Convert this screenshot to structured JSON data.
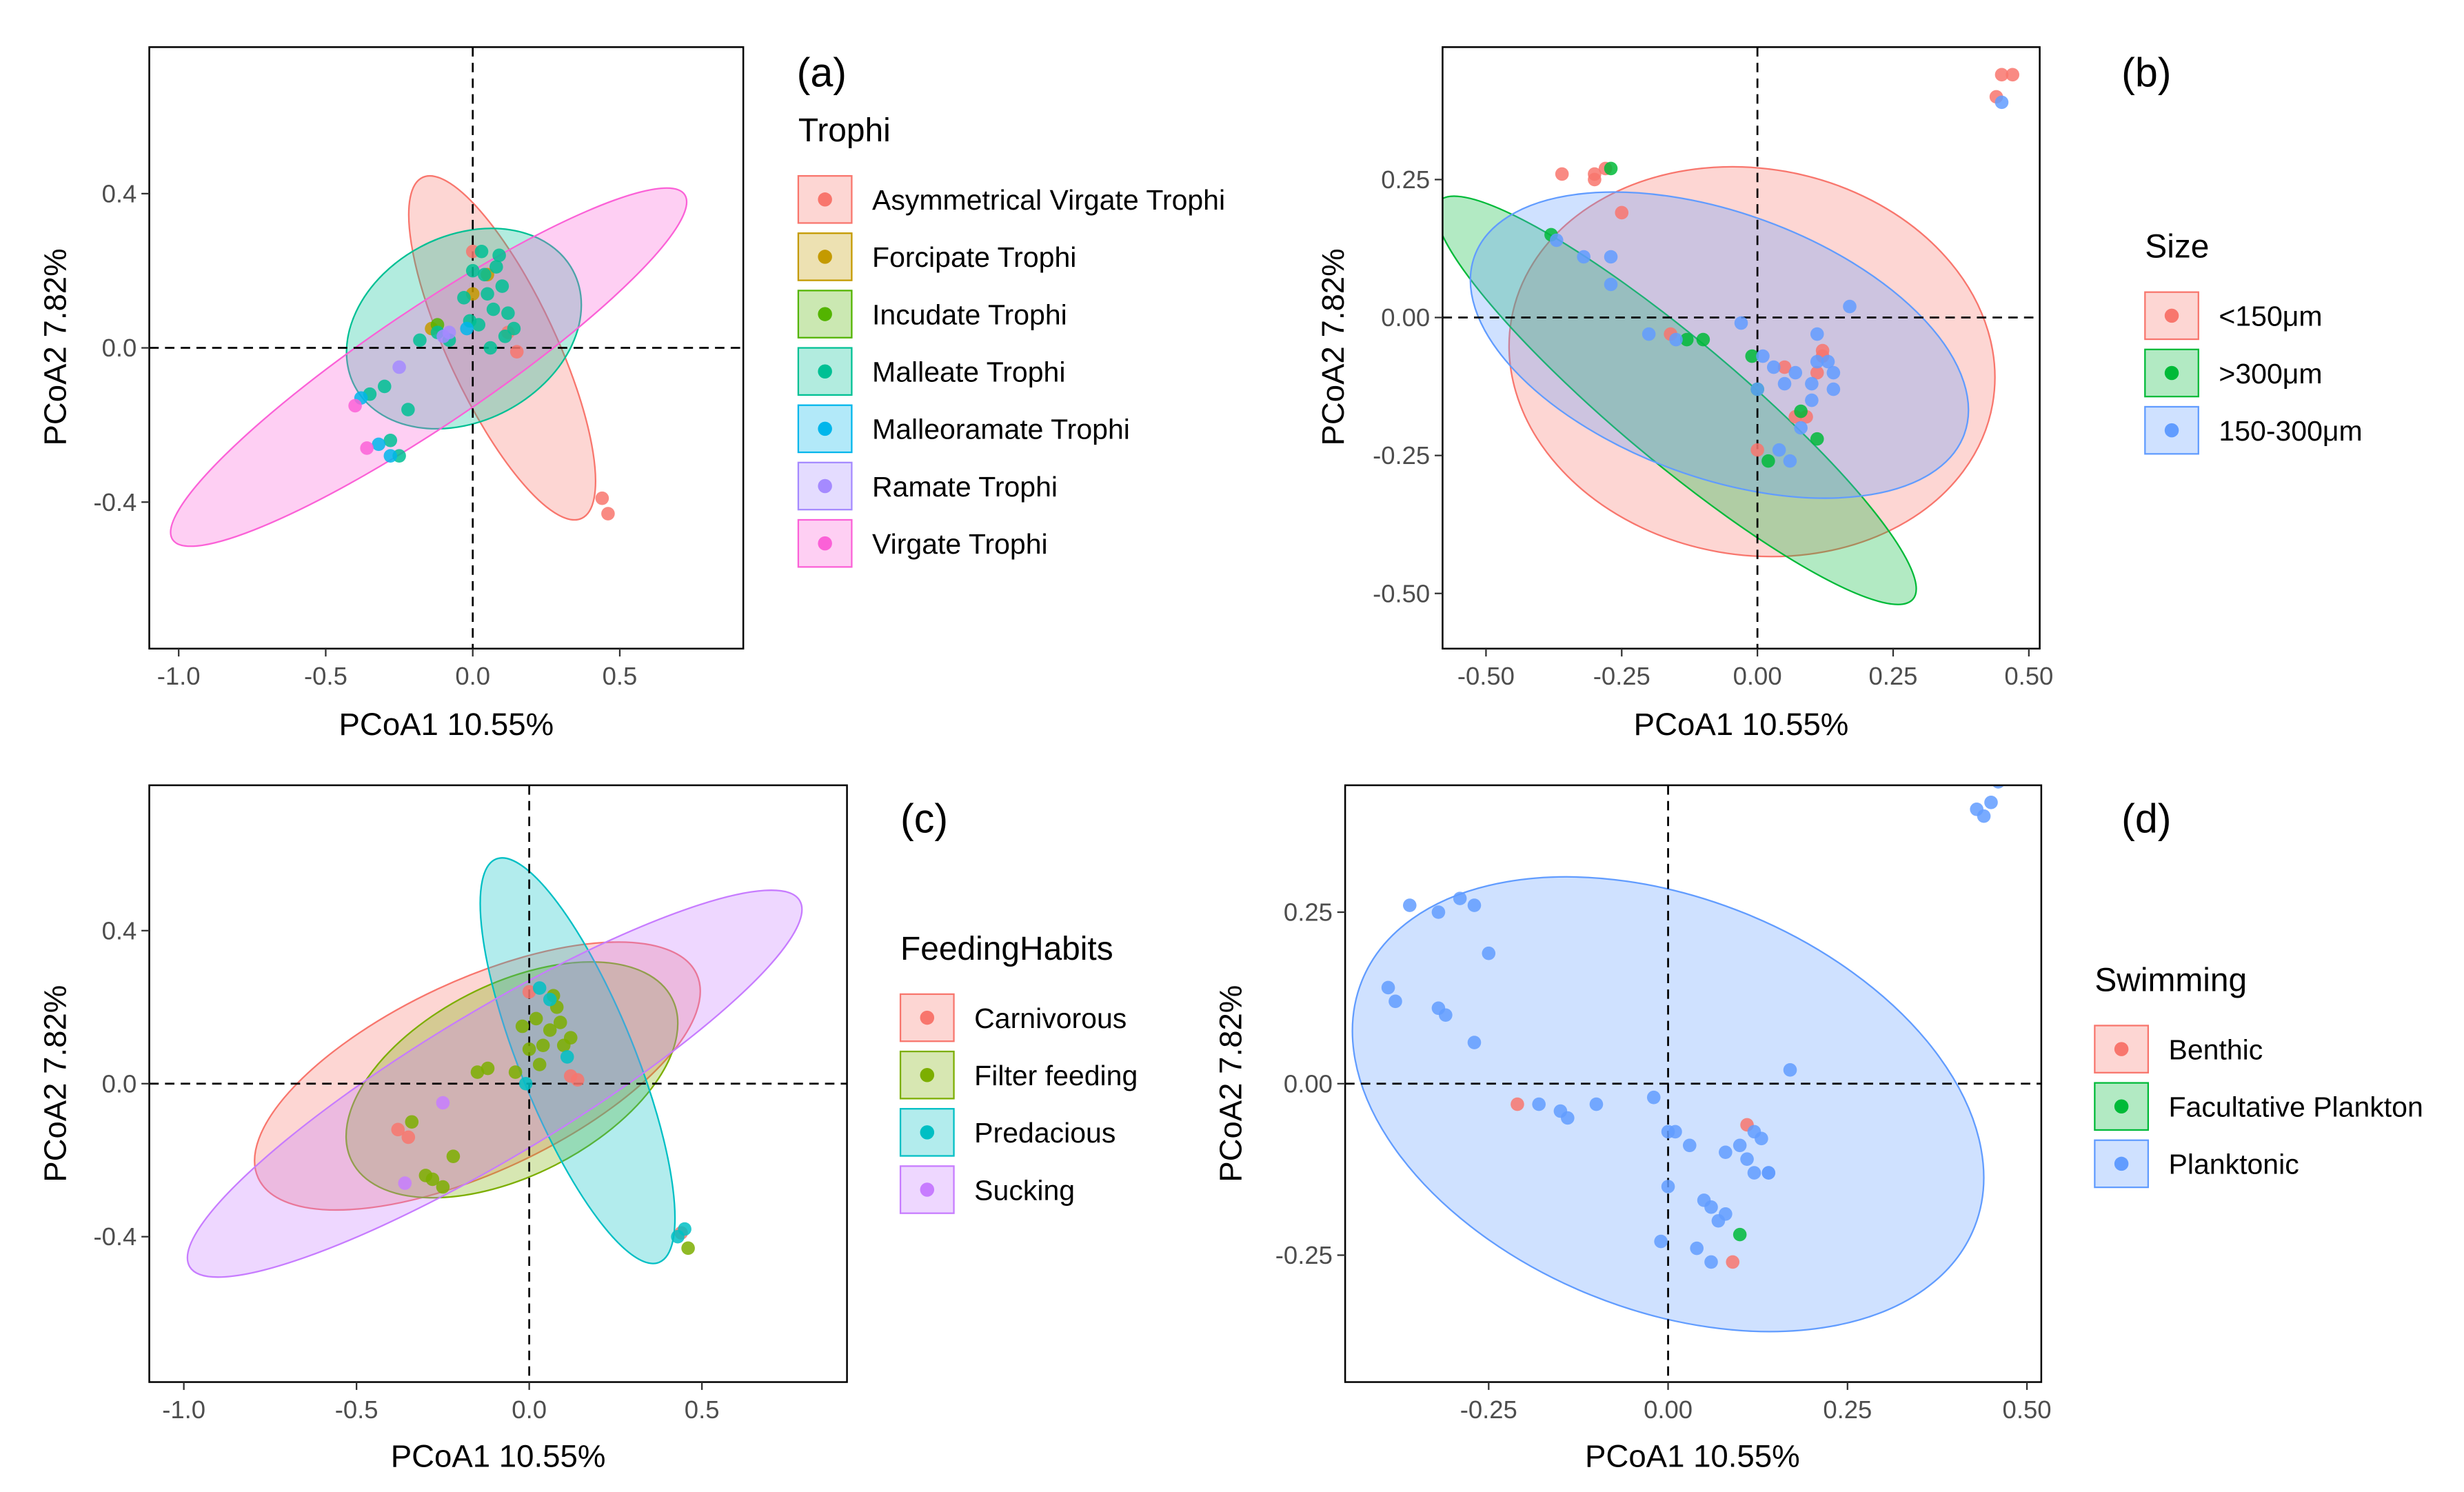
{
  "chart_data": [
    {
      "panel": "a",
      "tag": "(a)",
      "type": "scatter",
      "xlabel": "PCoA1 10.55%",
      "ylabel": "PCoA2 7.82%",
      "xlim": [
        -1.1,
        0.92
      ],
      "ylim": [
        -0.78,
        0.78
      ],
      "xticks": [
        -1.0,
        -0.5,
        0.0,
        0.5
      ],
      "xtick_labels": [
        "-1.0",
        "-0.5",
        "0.0",
        "0.5"
      ],
      "yticks": [
        -0.4,
        0.0,
        0.4
      ],
      "ytick_labels": [
        "-0.4",
        "0.0",
        "0.4"
      ],
      "legend": {
        "title": "Trophi",
        "position": "right",
        "entries": [
          "Asymmetrical Virgate Trophi",
          "Forcipate Trophi",
          "Incudate Trophi",
          "Malleate Trophi",
          "Malleoramate Trophi",
          "Ramate Trophi",
          "Virgate Trophi"
        ],
        "colors": [
          "#F8766D",
          "#C49A00",
          "#53B400",
          "#00C094",
          "#00B6EB",
          "#A58AFF",
          "#FB61D7"
        ]
      },
      "ellipses": [
        {
          "group": "Asymmetrical Virgate Trophi",
          "cx": 0.1,
          "cy": 0.0,
          "rx": 0.64,
          "ry": 0.14,
          "angle_deg": -65
        },
        {
          "group": "Malleate Trophi",
          "cx": -0.03,
          "cy": 0.05,
          "rx": 0.42,
          "ry": 0.24,
          "angle_deg": 28
        },
        {
          "group": "Virgate Trophi",
          "cx": -0.15,
          "cy": -0.05,
          "rx": 1.05,
          "ry": 0.15,
          "angle_deg": 34
        }
      ],
      "series": [
        {
          "name": "Asymmetrical Virgate Trophi",
          "x": [
            0.44,
            0.46,
            0.0,
            0.12,
            0.15
          ],
          "y": [
            -0.39,
            -0.43,
            0.25,
            0.04,
            -0.01
          ]
        },
        {
          "name": "Forcipate Trophi",
          "x": [
            0.05,
            0.0,
            -0.14
          ],
          "y": [
            0.19,
            0.14,
            0.05
          ]
        },
        {
          "name": "Incudate Trophi",
          "x": [
            -0.12
          ],
          "y": [
            0.06
          ]
        },
        {
          "name": "Malleate Trophi",
          "x": [
            -0.35,
            -0.3,
            -0.28,
            -0.25,
            -0.22,
            -0.18,
            -0.12,
            -0.08,
            0.0,
            0.03,
            0.05,
            0.07,
            0.08,
            0.1,
            0.12,
            0.14,
            0.02,
            0.06,
            -0.03,
            0.09,
            0.04,
            -0.01,
            0.11
          ],
          "y": [
            -0.12,
            -0.1,
            -0.24,
            -0.28,
            -0.16,
            0.02,
            0.04,
            0.02,
            0.2,
            0.25,
            0.14,
            0.1,
            0.21,
            0.16,
            0.09,
            0.05,
            0.06,
            0.0,
            0.13,
            0.24,
            0.19,
            0.07,
            0.03
          ]
        },
        {
          "name": "Malleoramate Trophi",
          "x": [
            -0.38,
            -0.32,
            -0.28,
            -0.02
          ],
          "y": [
            -0.13,
            -0.25,
            -0.28,
            0.05
          ]
        },
        {
          "name": "Ramate Trophi",
          "x": [
            -0.25,
            -0.1,
            -0.08
          ],
          "y": [
            -0.05,
            0.03,
            0.04
          ]
        },
        {
          "name": "Virgate Trophi",
          "x": [
            -0.36,
            -0.4
          ],
          "y": [
            -0.26,
            -0.15
          ]
        }
      ]
    },
    {
      "panel": "b",
      "tag": "(b)",
      "type": "scatter",
      "xlabel": "PCoA1 10.55%",
      "ylabel": "PCoA2 7.82%",
      "xlim": [
        -0.58,
        0.52
      ],
      "ylim": [
        -0.6,
        0.49
      ],
      "xticks": [
        -0.5,
        -0.25,
        0.0,
        0.25,
        0.5
      ],
      "xtick_labels": [
        "-0.50",
        "-0.25",
        "0.00",
        "0.25",
        "0.50"
      ],
      "yticks": [
        -0.5,
        -0.25,
        0.0,
        0.25
      ],
      "ytick_labels": [
        "-0.50",
        "-0.25",
        "0.00",
        "0.25"
      ],
      "legend": {
        "title": "Size",
        "position": "right",
        "entries": [
          "<150μm",
          ">300μm",
          "150-300μm"
        ],
        "colors": [
          "#F8766D",
          "#00BA38",
          "#619CFF"
        ]
      },
      "ellipses": [
        {
          "group": "<150μm",
          "cx": -0.01,
          "cy": -0.08,
          "rx": 0.45,
          "ry": 0.35,
          "angle_deg": -10
        },
        {
          "group": ">300μm",
          "cx": -0.15,
          "cy": -0.15,
          "rx": 0.57,
          "ry": 0.11,
          "angle_deg": -40
        },
        {
          "group": "150-300μm",
          "cx": -0.07,
          "cy": -0.05,
          "rx": 0.48,
          "ry": 0.24,
          "angle_deg": -20
        }
      ],
      "series": [
        {
          "name": "<150μm",
          "x": [
            0.45,
            0.47,
            0.44,
            -0.36,
            -0.3,
            -0.28,
            -0.25,
            -0.16,
            0.05,
            0.11,
            0.12,
            0.07,
            0.09,
            0.0,
            0.12,
            -0.3
          ],
          "y": [
            0.44,
            0.44,
            0.4,
            0.26,
            0.25,
            0.27,
            0.19,
            -0.03,
            -0.09,
            -0.1,
            -0.06,
            -0.18,
            -0.18,
            -0.24,
            -0.07,
            0.26
          ]
        },
        {
          "name": ">300μm",
          "x": [
            -0.27,
            -0.38,
            -0.13,
            -0.1,
            -0.01,
            0.0,
            0.02,
            0.08,
            0.11
          ],
          "y": [
            0.27,
            0.15,
            -0.04,
            -0.04,
            -0.07,
            -0.13,
            -0.26,
            -0.17,
            -0.22
          ]
        },
        {
          "name": "150-300μm",
          "x": [
            0.45,
            -0.37,
            -0.32,
            -0.27,
            -0.27,
            -0.2,
            -0.15,
            -0.03,
            0.01,
            0.03,
            0.05,
            0.07,
            0.1,
            0.11,
            0.11,
            0.13,
            0.14,
            0.17,
            0.04,
            0.06,
            0.1,
            0.08,
            0.0,
            0.14
          ],
          "y": [
            0.39,
            0.14,
            0.11,
            0.11,
            0.06,
            -0.03,
            -0.04,
            -0.01,
            -0.07,
            -0.09,
            -0.12,
            -0.1,
            -0.12,
            -0.03,
            -0.08,
            -0.08,
            -0.13,
            0.02,
            -0.24,
            -0.26,
            -0.15,
            -0.2,
            -0.13,
            -0.1
          ]
        }
      ]
    },
    {
      "panel": "c",
      "tag": "(c)",
      "type": "scatter",
      "xlabel": "PCoA1 10.55%",
      "ylabel": "PCoA2 7.82%",
      "xlim": [
        -1.1,
        0.92
      ],
      "ylim": [
        -0.78,
        0.78
      ],
      "xticks": [
        -1.0,
        -0.5,
        0.0,
        0.5
      ],
      "xtick_labels": [
        "-1.0",
        "-0.5",
        "0.0",
        "0.5"
      ],
      "yticks": [
        -0.4,
        0.0,
        0.4
      ],
      "ytick_labels": [
        "-0.4",
        "0.0",
        "0.4"
      ],
      "legend": {
        "title": "FeedingHabits",
        "position": "right",
        "entries": [
          "Carnivorous",
          "Filter feeding",
          "Predacious",
          "Sucking"
        ],
        "colors": [
          "#F8766D",
          "#7CAE00",
          "#00BFC4",
          "#C77CFF"
        ]
      },
      "ellipses": [
        {
          "group": "Carnivorous",
          "cx": -0.15,
          "cy": 0.02,
          "rx": 0.7,
          "ry": 0.25,
          "angle_deg": 25
        },
        {
          "group": "Filter feeding",
          "cx": -0.05,
          "cy": 0.01,
          "rx": 0.52,
          "ry": 0.25,
          "angle_deg": 27
        },
        {
          "group": "Predacious",
          "cx": 0.14,
          "cy": 0.06,
          "rx": 0.63,
          "ry": 0.15,
          "angle_deg": -68
        },
        {
          "group": "Sucking",
          "cx": -0.1,
          "cy": 0.0,
          "rx": 1.03,
          "ry": 0.19,
          "angle_deg": 31
        }
      ],
      "series": [
        {
          "name": "Carnivorous",
          "x": [
            0.44,
            -0.38,
            0.0,
            0.12,
            0.14,
            -0.35
          ],
          "y": [
            -0.39,
            -0.12,
            0.24,
            0.02,
            0.01,
            -0.14
          ]
        },
        {
          "name": "Filter feeding",
          "x": [
            -0.34,
            -0.3,
            -0.25,
            -0.22,
            -0.15,
            -0.12,
            -0.04,
            0.0,
            0.02,
            0.04,
            0.06,
            0.08,
            0.1,
            0.12,
            0.03,
            0.07,
            -0.02,
            0.09,
            0.46,
            -0.28
          ],
          "y": [
            -0.1,
            -0.24,
            -0.27,
            -0.19,
            0.03,
            0.04,
            0.03,
            0.09,
            0.17,
            0.1,
            0.14,
            0.2,
            0.1,
            0.12,
            0.05,
            0.23,
            0.15,
            0.16,
            -0.43,
            -0.25
          ]
        },
        {
          "name": "Predacious",
          "x": [
            0.43,
            0.45,
            0.03,
            0.06,
            0.11,
            -0.01
          ],
          "y": [
            -0.4,
            -0.38,
            0.25,
            0.22,
            0.07,
            0.0
          ]
        },
        {
          "name": "Sucking",
          "x": [
            -0.36,
            -0.25
          ],
          "y": [
            -0.26,
            -0.05
          ]
        }
      ]
    },
    {
      "panel": "d",
      "tag": "(d)",
      "type": "scatter",
      "xlabel": "PCoA1 10.55%",
      "ylabel": "PCoA2 7.82%",
      "xlim": [
        -0.45,
        0.52
      ],
      "ylim": [
        -0.435,
        0.435
      ],
      "xticks": [
        -0.25,
        0.0,
        0.25,
        0.5
      ],
      "xtick_labels": [
        "-0.25",
        "0.00",
        "0.25",
        "0.50"
      ],
      "yticks": [
        -0.25,
        0.0,
        0.25
      ],
      "ytick_labels": [
        "-0.25",
        "0.00",
        "0.25"
      ],
      "legend": {
        "title": "Swimming",
        "position": "right",
        "entries": [
          "Benthic",
          "Facultative Plankton",
          "Planktonic"
        ],
        "colors": [
          "#F8766D",
          "#00BA38",
          "#619CFF"
        ]
      },
      "ellipses": [
        {
          "group": "Planktonic",
          "cx": 0.0,
          "cy": -0.03,
          "rx": 0.46,
          "ry": 0.3,
          "angle_deg": -22
        }
      ],
      "series": [
        {
          "name": "Benthic",
          "x": [
            -0.21,
            0.11,
            0.09
          ],
          "y": [
            -0.03,
            -0.06,
            -0.26
          ]
        },
        {
          "name": "Facultative Plankton",
          "x": [
            0.1
          ],
          "y": [
            -0.22
          ]
        },
        {
          "name": "Planktonic",
          "x": [
            0.46,
            0.45,
            0.43,
            0.44,
            -0.36,
            -0.32,
            -0.29,
            -0.27,
            -0.25,
            -0.39,
            -0.38,
            -0.31,
            -0.32,
            -0.27,
            -0.18,
            -0.15,
            -0.14,
            -0.1,
            -0.02,
            0.0,
            0.01,
            0.03,
            0.08,
            0.1,
            0.11,
            0.12,
            0.13,
            0.14,
            0.14,
            0.17,
            0.06,
            0.05,
            0.08,
            0.07,
            -0.01,
            0.0,
            0.04,
            0.06,
            0.12
          ],
          "y": [
            0.44,
            0.41,
            0.4,
            0.39,
            0.26,
            0.25,
            0.27,
            0.26,
            0.19,
            0.14,
            0.12,
            0.1,
            0.11,
            0.06,
            -0.03,
            -0.04,
            -0.05,
            -0.03,
            -0.02,
            -0.07,
            -0.07,
            -0.09,
            -0.1,
            -0.09,
            -0.11,
            -0.13,
            -0.08,
            -0.13,
            -0.13,
            0.02,
            -0.18,
            -0.17,
            -0.19,
            -0.2,
            -0.23,
            -0.15,
            -0.24,
            -0.26,
            -0.07
          ]
        }
      ]
    }
  ]
}
